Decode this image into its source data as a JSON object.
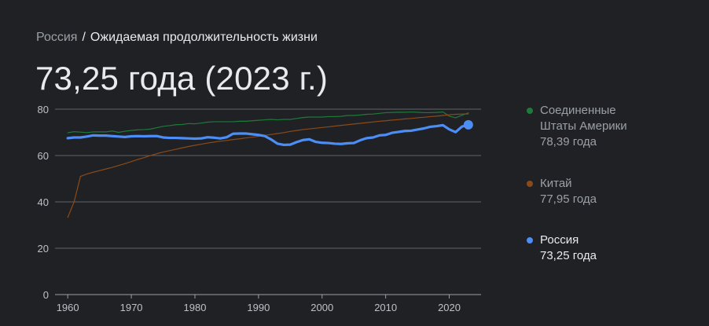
{
  "breadcrumb": {
    "country": "Россия",
    "separator": "/",
    "topic": "Ожидаемая продолжительность жизни"
  },
  "headline": "73,25 года (2023 г.)",
  "colors": {
    "background": "#202124",
    "usa": "#1e7a3a",
    "china": "#8a4a1a",
    "russia": "#4c8df6",
    "grid": "#5f6368",
    "tick": "#bdc1c6"
  },
  "legend": [
    {
      "key": "usa",
      "name_line1": "Соединенные",
      "name_line2": "Штаты Америки",
      "value": "78,39 года"
    },
    {
      "key": "china",
      "name_line1": "Китай",
      "name_line2": "",
      "value": "77,95 года"
    },
    {
      "key": "russia",
      "name_line1": "Россия",
      "name_line2": "",
      "value": "73,25 года"
    }
  ],
  "chart_data": {
    "type": "line",
    "title": "",
    "xlabel": "",
    "ylabel": "",
    "xlim": [
      1958,
      2025
    ],
    "ylim": [
      0,
      80
    ],
    "x_ticks": [
      1960,
      1970,
      1980,
      1990,
      2000,
      2010,
      2020
    ],
    "y_ticks": [
      0,
      20,
      40,
      60,
      80
    ],
    "grid": true,
    "legend_position": "right",
    "x": [
      1960,
      1961,
      1962,
      1963,
      1964,
      1965,
      1966,
      1967,
      1968,
      1969,
      1970,
      1971,
      1972,
      1973,
      1974,
      1975,
      1976,
      1977,
      1978,
      1979,
      1980,
      1981,
      1982,
      1983,
      1984,
      1985,
      1986,
      1987,
      1988,
      1989,
      1990,
      1991,
      1992,
      1993,
      1994,
      1995,
      1996,
      1997,
      1998,
      1999,
      2000,
      2001,
      2002,
      2003,
      2004,
      2005,
      2006,
      2007,
      2008,
      2009,
      2010,
      2011,
      2012,
      2013,
      2014,
      2015,
      2016,
      2017,
      2018,
      2019,
      2020,
      2021,
      2022,
      2023
    ],
    "series": [
      {
        "name": "Соединенные Штаты Америки",
        "key": "usa",
        "values": [
          69.8,
          70.3,
          70.1,
          69.9,
          70.2,
          70.2,
          70.2,
          70.6,
          70.0,
          70.5,
          70.8,
          71.1,
          71.2,
          71.4,
          72.0,
          72.6,
          72.9,
          73.3,
          73.4,
          73.8,
          73.7,
          74.0,
          74.4,
          74.6,
          74.6,
          74.6,
          74.6,
          74.8,
          74.8,
          75.0,
          75.2,
          75.4,
          75.6,
          75.4,
          75.6,
          75.6,
          76.0,
          76.4,
          76.6,
          76.6,
          76.6,
          76.8,
          76.8,
          76.9,
          77.3,
          77.3,
          77.5,
          77.8,
          77.9,
          78.2,
          78.5,
          78.6,
          78.7,
          78.7,
          78.8,
          78.7,
          78.5,
          78.5,
          78.6,
          78.8,
          77.0,
          76.3,
          77.4,
          78.4
        ]
      },
      {
        "name": "Китай",
        "key": "china",
        "values": [
          33.3,
          40.0,
          51.0,
          52.0,
          52.8,
          53.5,
          54.2,
          54.9,
          55.7,
          56.5,
          57.4,
          58.3,
          59.1,
          60.0,
          60.8,
          61.5,
          62.1,
          62.7,
          63.3,
          63.9,
          64.4,
          64.9,
          65.4,
          65.8,
          66.2,
          66.5,
          66.9,
          67.2,
          67.6,
          67.9,
          68.3,
          68.7,
          69.1,
          69.5,
          69.9,
          70.4,
          70.8,
          71.2,
          71.5,
          71.8,
          72.1,
          72.4,
          72.7,
          73.0,
          73.3,
          73.6,
          73.9,
          74.2,
          74.5,
          74.8,
          75.0,
          75.3,
          75.5,
          75.8,
          76.0,
          76.3,
          76.5,
          76.8,
          77.0,
          77.3,
          77.6,
          77.8,
          77.9,
          77.95
        ]
      },
      {
        "name": "Россия",
        "key": "russia",
        "values": [
          67.5,
          67.8,
          67.8,
          68.2,
          68.7,
          68.6,
          68.6,
          68.4,
          68.2,
          68.0,
          68.3,
          68.4,
          68.3,
          68.4,
          68.4,
          67.8,
          67.6,
          67.6,
          67.5,
          67.4,
          67.3,
          67.4,
          67.9,
          67.7,
          67.4,
          67.9,
          69.4,
          69.5,
          69.5,
          69.2,
          68.9,
          68.4,
          66.9,
          65.1,
          64.6,
          64.7,
          65.8,
          66.7,
          67.0,
          65.9,
          65.5,
          65.4,
          65.1,
          65.0,
          65.3,
          65.4,
          66.6,
          67.5,
          67.8,
          68.7,
          68.9,
          69.8,
          70.2,
          70.6,
          70.7,
          71.2,
          71.7,
          72.4,
          72.7,
          73.1,
          71.3,
          70.1,
          72.5,
          73.25
        ]
      }
    ]
  }
}
